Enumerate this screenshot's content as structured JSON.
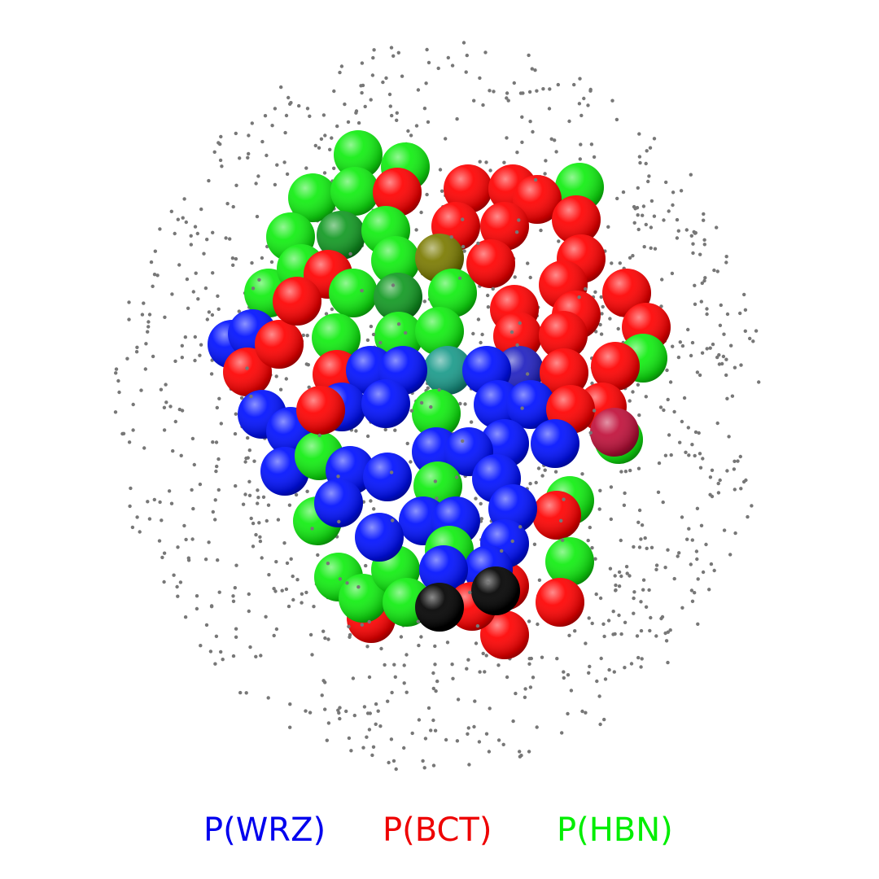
{
  "legend": {
    "items": [
      {
        "label": "P(WRZ)",
        "color": "#0000ee"
      },
      {
        "label": "P(BCT)",
        "color": "#ee0000"
      },
      {
        "label": "P(HBN)",
        "color": "#00ee00"
      }
    ]
  },
  "colors": {
    "blue": "#0010ff",
    "red": "#ff0000",
    "green": "#10ee10",
    "black": "#000000",
    "olive": "#7a7a00",
    "teal": "#1a9a8a",
    "crimson": "#c0103a",
    "dark_green": "#119922",
    "dark_blue": "#2020c0",
    "background_dots": "#777777"
  }
}
